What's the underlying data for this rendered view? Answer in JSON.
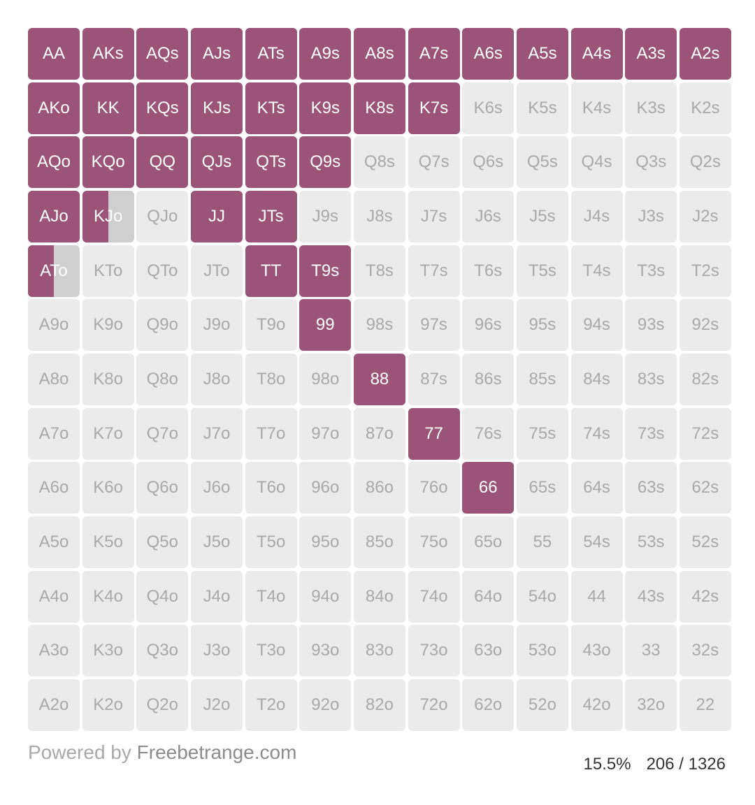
{
  "colors": {
    "selected": "#9b5477",
    "unselected": "#ebebeb",
    "unselected_text": "#a9a9a9",
    "partial_remainder": "#cfcfcf"
  },
  "grid": [
    [
      "AA",
      "AKs",
      "AQs",
      "AJs",
      "ATs",
      "A9s",
      "A8s",
      "A7s",
      "A6s",
      "A5s",
      "A4s",
      "A3s",
      "A2s"
    ],
    [
      "AKo",
      "KK",
      "KQs",
      "KJs",
      "KTs",
      "K9s",
      "K8s",
      "K7s",
      "K6s",
      "K5s",
      "K4s",
      "K3s",
      "K2s"
    ],
    [
      "AQo",
      "KQo",
      "QQ",
      "QJs",
      "QTs",
      "Q9s",
      "Q8s",
      "Q7s",
      "Q6s",
      "Q5s",
      "Q4s",
      "Q3s",
      "Q2s"
    ],
    [
      "AJo",
      "KJo",
      "QJo",
      "JJ",
      "JTs",
      "J9s",
      "J8s",
      "J7s",
      "J6s",
      "J5s",
      "J4s",
      "J3s",
      "J2s"
    ],
    [
      "ATo",
      "KTo",
      "QTo",
      "JTo",
      "TT",
      "T9s",
      "T8s",
      "T7s",
      "T6s",
      "T5s",
      "T4s",
      "T3s",
      "T2s"
    ],
    [
      "A9o",
      "K9o",
      "Q9o",
      "J9o",
      "T9o",
      "99",
      "98s",
      "97s",
      "96s",
      "95s",
      "94s",
      "93s",
      "92s"
    ],
    [
      "A8o",
      "K8o",
      "Q8o",
      "J8o",
      "T8o",
      "98o",
      "88",
      "87s",
      "86s",
      "85s",
      "84s",
      "83s",
      "82s"
    ],
    [
      "A7o",
      "K7o",
      "Q7o",
      "J7o",
      "T7o",
      "97o",
      "87o",
      "77",
      "76s",
      "75s",
      "74s",
      "73s",
      "72s"
    ],
    [
      "A6o",
      "K6o",
      "Q6o",
      "J6o",
      "T6o",
      "96o",
      "86o",
      "76o",
      "66",
      "65s",
      "64s",
      "63s",
      "62s"
    ],
    [
      "A5o",
      "K5o",
      "Q5o",
      "J5o",
      "T5o",
      "95o",
      "85o",
      "75o",
      "65o",
      "55",
      "54s",
      "53s",
      "52s"
    ],
    [
      "A4o",
      "K4o",
      "Q4o",
      "J4o",
      "T4o",
      "94o",
      "84o",
      "74o",
      "64o",
      "54o",
      "44",
      "43s",
      "42s"
    ],
    [
      "A3o",
      "K3o",
      "Q3o",
      "J3o",
      "T3o",
      "93o",
      "83o",
      "73o",
      "63o",
      "53o",
      "43o",
      "33",
      "32s"
    ],
    [
      "A2o",
      "K2o",
      "Q2o",
      "J2o",
      "T2o",
      "92o",
      "82o",
      "72o",
      "62o",
      "52o",
      "42o",
      "32o",
      "22"
    ]
  ],
  "selection": {
    "AA": 1,
    "AKs": 1,
    "AQs": 1,
    "AJs": 1,
    "ATs": 1,
    "A9s": 1,
    "A8s": 1,
    "A7s": 1,
    "A6s": 1,
    "A5s": 1,
    "A4s": 1,
    "A3s": 1,
    "A2s": 1,
    "AKo": 1,
    "KK": 1,
    "KQs": 1,
    "KJs": 1,
    "KTs": 1,
    "K9s": 1,
    "K8s": 1,
    "K7s": 1,
    "AQo": 1,
    "KQo": 1,
    "QQ": 1,
    "QJs": 1,
    "QTs": 1,
    "Q9s": 1,
    "AJo": 1,
    "KJo": 0.5,
    "JJ": 1,
    "JTs": 1,
    "ATo": 0.5,
    "TT": 1,
    "T9s": 1,
    "99": 1,
    "88": 1,
    "77": 1,
    "66": 1
  },
  "footer": {
    "powered_prefix": "Powered by ",
    "powered_brand": "Freebetrange.com",
    "percent": "15.5%",
    "combos": "206 / 1326"
  }
}
